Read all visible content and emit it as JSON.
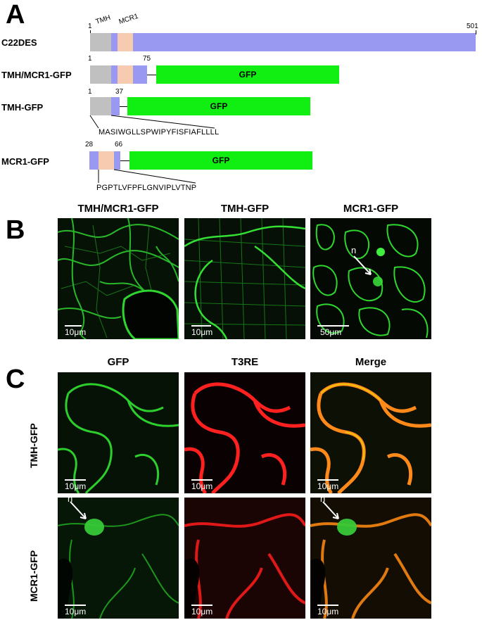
{
  "panels": {
    "a": "A",
    "b": "B",
    "c": "C"
  },
  "diagram": {
    "domain_tmh": "TMH",
    "domain_mcr1": "MCR1",
    "constructs": [
      {
        "name": "C22DES",
        "start": "1",
        "end": "501"
      },
      {
        "name": "TMH/MCR1-GFP",
        "start": "1",
        "end": "75",
        "gfp": "GFP"
      },
      {
        "name": "TMH-GFP",
        "start": "1",
        "end": "37",
        "gfp": "GFP",
        "sequence": "MASIWGLLSPWIPYFISFIAFLLLL"
      },
      {
        "name": "MCR1-GFP",
        "start": "28",
        "end": "66",
        "gfp": "GFP",
        "sequence": "PGPTLVFPFLGNVIPLVTNP"
      }
    ],
    "colors": {
      "tmh": "#c0c0c0",
      "purple": "#9999f2",
      "mcr1": "#f6cbb0",
      "gfp": "#11ee11"
    }
  },
  "panel_b": {
    "titles": [
      "TMH/MCR1-GFP",
      "TMH-GFP",
      "MCR1-GFP"
    ],
    "scale_labels": [
      "10μm",
      "10μm",
      "50μm"
    ],
    "nucleus_label": "n"
  },
  "panel_c": {
    "column_titles": [
      "GFP",
      "T3RE",
      "Merge"
    ],
    "row_labels": [
      "TMH-GFP",
      "MCR1-GFP"
    ],
    "scale_label": "10μm",
    "nucleus_label": "n"
  }
}
